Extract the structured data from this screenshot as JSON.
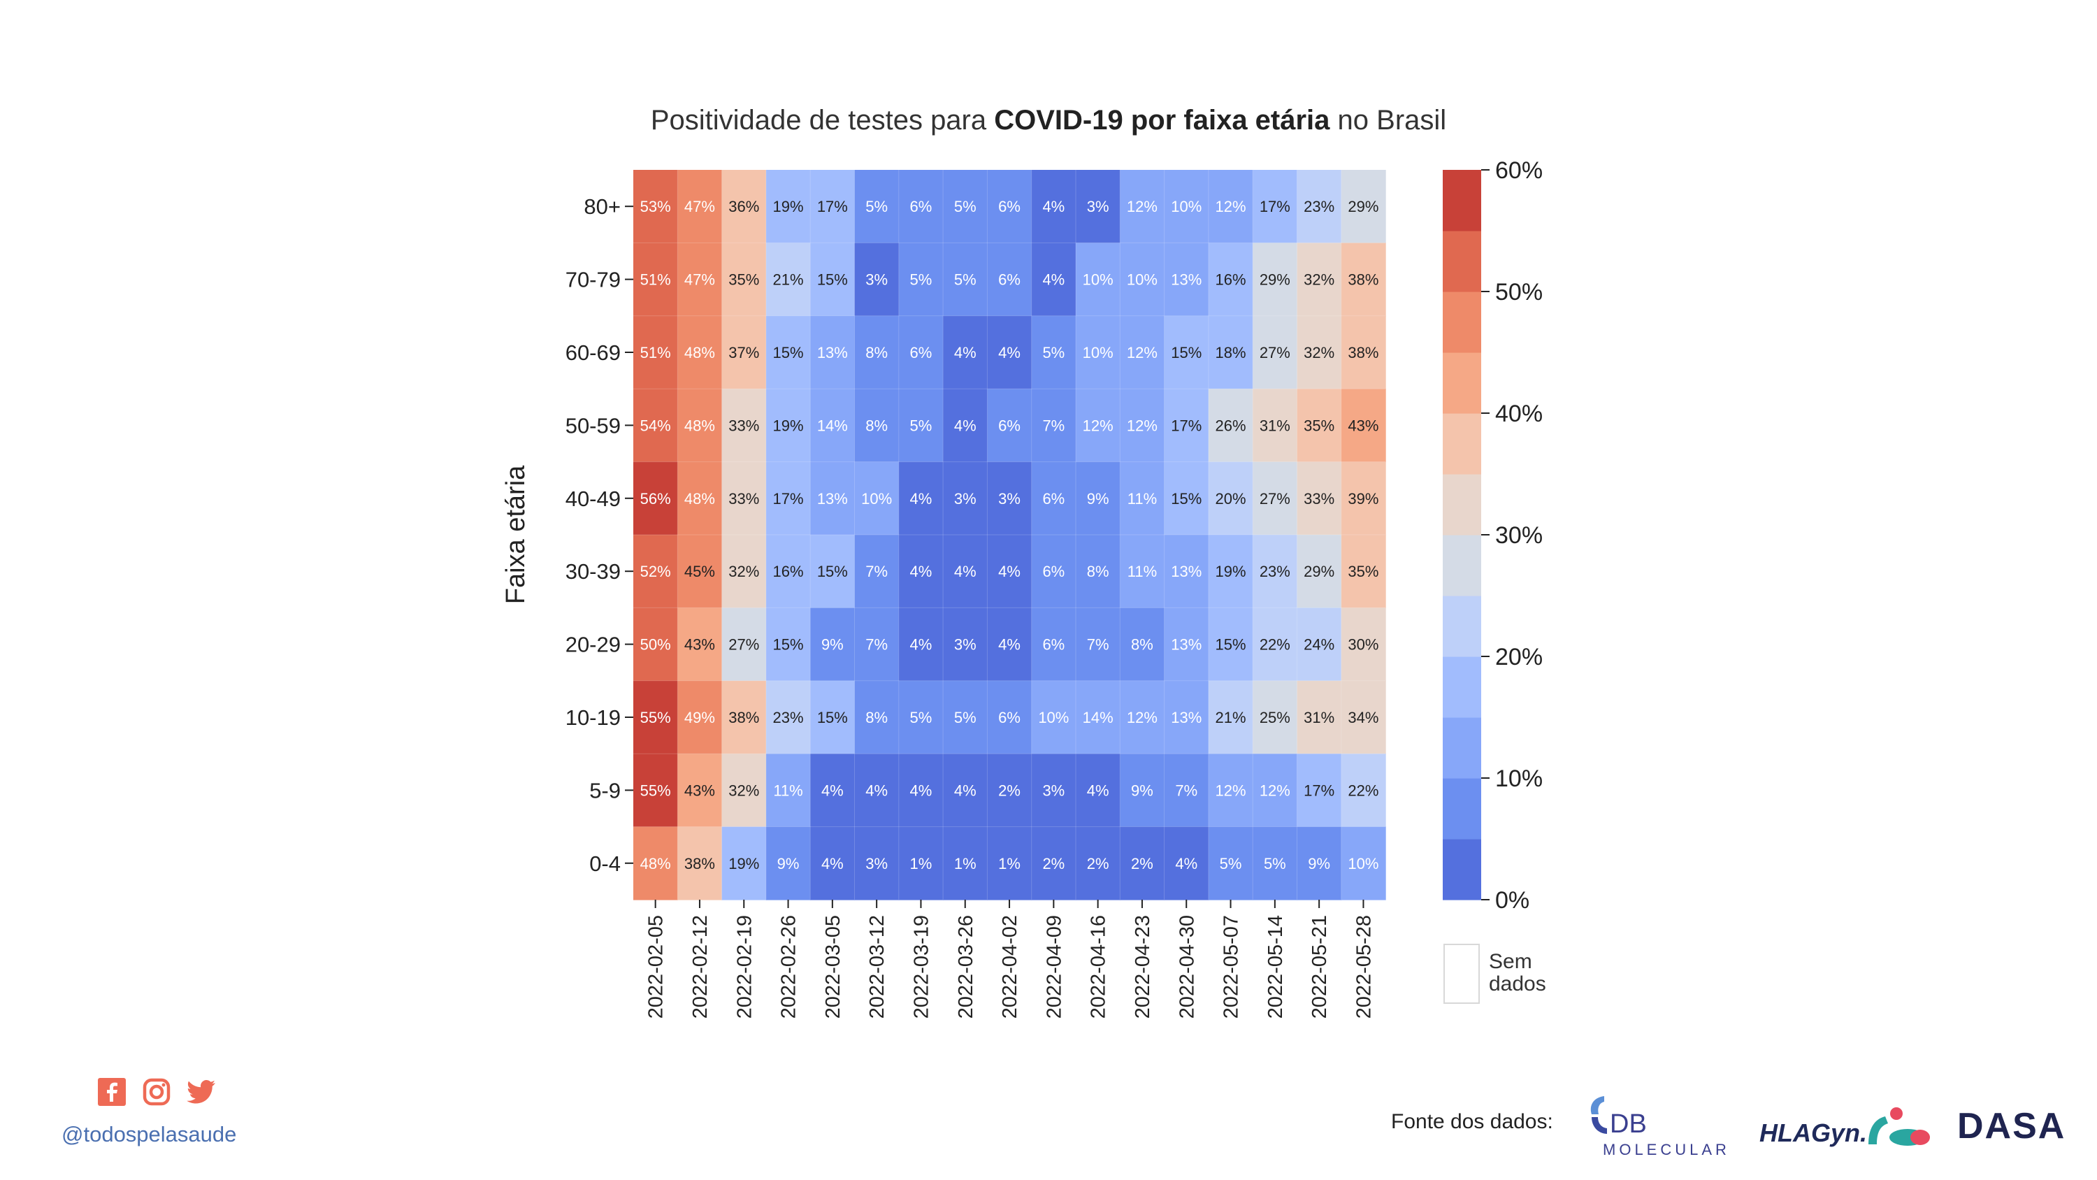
{
  "title": {
    "pre": "Positividade de testes para ",
    "bold": "COVID-19 por faixa etária",
    "post": " no Brasil"
  },
  "chart_data": {
    "type": "heatmap",
    "title": "Positividade de testes para COVID-19 por faixa etária no Brasil",
    "ylabel": "Faixa etária",
    "xlabel": "",
    "x": [
      "2022-02-05",
      "2022-02-12",
      "2022-02-19",
      "2022-02-26",
      "2022-03-05",
      "2022-03-12",
      "2022-03-19",
      "2022-03-26",
      "2022-04-02",
      "2022-04-09",
      "2022-04-16",
      "2022-04-23",
      "2022-04-30",
      "2022-05-07",
      "2022-05-14",
      "2022-05-21",
      "2022-05-28"
    ],
    "y": [
      "80+",
      "70-79",
      "60-69",
      "50-59",
      "40-49",
      "30-39",
      "20-29",
      "10-19",
      "5-9",
      "0-4"
    ],
    "values": [
      [
        53,
        47,
        36,
        19,
        17,
        5,
        6,
        5,
        6,
        4,
        3,
        12,
        10,
        12,
        17,
        23,
        29
      ],
      [
        51,
        47,
        35,
        21,
        15,
        3,
        5,
        5,
        6,
        4,
        10,
        10,
        13,
        16,
        29,
        32,
        38
      ],
      [
        51,
        48,
        37,
        15,
        13,
        8,
        6,
        4,
        4,
        5,
        10,
        12,
        15,
        18,
        27,
        32,
        38
      ],
      [
        54,
        48,
        33,
        19,
        14,
        8,
        5,
        4,
        6,
        7,
        12,
        12,
        17,
        26,
        31,
        35,
        43
      ],
      [
        56,
        48,
        33,
        17,
        13,
        10,
        4,
        3,
        3,
        6,
        9,
        11,
        15,
        20,
        27,
        33,
        39
      ],
      [
        52,
        45,
        32,
        16,
        15,
        7,
        4,
        4,
        4,
        6,
        8,
        11,
        13,
        19,
        23,
        29,
        35
      ],
      [
        50,
        43,
        27,
        15,
        9,
        7,
        4,
        3,
        4,
        6,
        7,
        8,
        13,
        15,
        22,
        24,
        30
      ],
      [
        55,
        49,
        38,
        23,
        15,
        8,
        5,
        5,
        6,
        10,
        14,
        12,
        13,
        21,
        25,
        31,
        34
      ],
      [
        55,
        43,
        32,
        11,
        4,
        4,
        4,
        4,
        2,
        3,
        4,
        9,
        7,
        12,
        12,
        17,
        22
      ],
      [
        48,
        38,
        19,
        9,
        4,
        3,
        1,
        1,
        1,
        2,
        2,
        2,
        4,
        5,
        5,
        9,
        10
      ]
    ],
    "value_suffix": "%",
    "colorbar": {
      "min": 0,
      "max": 60,
      "step": 5,
      "tick_values": [
        0,
        10,
        20,
        30,
        40,
        50,
        60
      ],
      "tick_labels": [
        "0%",
        "10%",
        "20%",
        "30%",
        "40%",
        "50%",
        "60%"
      ],
      "colors": [
        "#5470de",
        "#6c8ff0",
        "#87a7f9",
        "#a1bcfd",
        "#bed0f9",
        "#d4dbe6",
        "#e8d6cc",
        "#f4c4ac",
        "#f5a886",
        "#ee8a69",
        "#e06950",
        "#c84138"
      ]
    },
    "nodata_legend": "Sem\ndados",
    "grid": false,
    "legend_position": "right"
  },
  "footer": {
    "handle": "@todospelasaude",
    "source_label": "Fonte dos dados:",
    "social_icons": [
      "facebook-icon",
      "instagram-icon",
      "twitter-icon"
    ],
    "social_color": "#ee6a55",
    "logos": {
      "db": "DB",
      "db_sub": "MOLECULAR",
      "hla": "HLAGyn.",
      "dasa": "DASA"
    }
  }
}
